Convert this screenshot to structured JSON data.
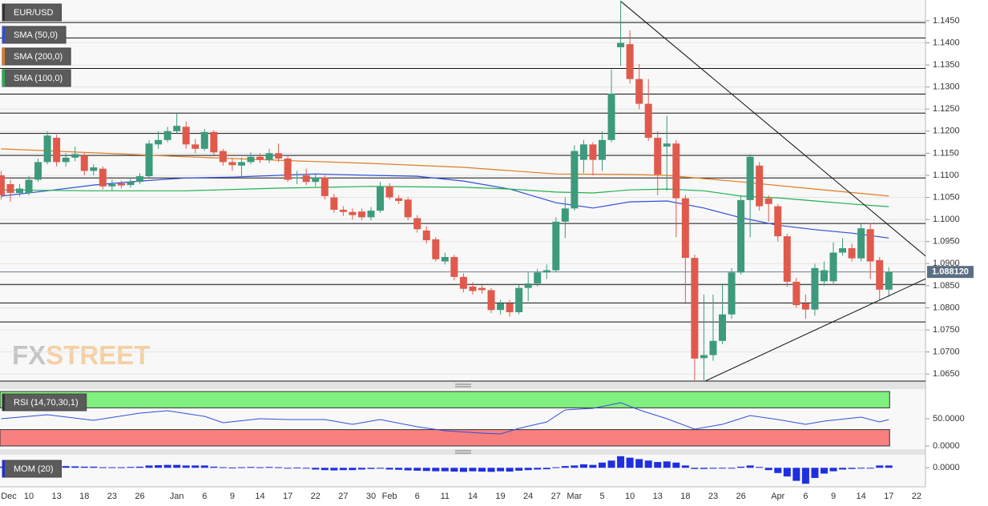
{
  "chart_data": [
    {
      "type": "candlestick",
      "title": "EUR/USD",
      "categories": [
        "Dec",
        null,
        null,
        "10",
        null,
        null,
        "13",
        null,
        null,
        "18",
        null,
        null,
        "23",
        null,
        null,
        "26",
        null,
        null,
        null,
        "Jan",
        null,
        null,
        "6",
        null,
        null,
        "9",
        null,
        null,
        "14",
        null,
        null,
        "17",
        null,
        null,
        "22",
        null,
        null,
        "27",
        null,
        null,
        "30",
        null,
        "Feb",
        null,
        null,
        "6",
        null,
        null,
        "11",
        null,
        null,
        "14",
        null,
        null,
        "19",
        null,
        null,
        "24",
        null,
        null,
        "27",
        null,
        "Mar",
        null,
        null,
        "5",
        null,
        null,
        "10",
        null,
        null,
        "13",
        null,
        null,
        "18",
        null,
        null,
        "23",
        null,
        null,
        "26",
        null,
        null,
        null,
        "Apr",
        null,
        null,
        "6",
        null,
        null,
        "9",
        null,
        null,
        "14",
        null,
        null,
        "17",
        null,
        null,
        "22"
      ],
      "open": [
        1.11,
        1.108,
        1.106,
        1.106,
        1.109,
        1.113,
        1.1185,
        1.113,
        1.114,
        1.1145,
        1.111,
        1.1115,
        1.1075,
        1.1082,
        1.1078,
        1.1085,
        1.1098,
        1.117,
        1.118,
        1.12,
        1.121,
        1.117,
        1.116,
        1.1198,
        1.1155,
        1.113,
        1.1122,
        1.113,
        1.1142,
        1.1135,
        1.115,
        1.1138,
        1.1093,
        1.11,
        1.1085,
        1.1095,
        1.105,
        1.1022,
        1.1017,
        1.1018,
        1.1005,
        1.102,
        1.1075,
        1.1048,
        1.1045,
        1.1003,
        1.0975,
        1.0955,
        1.0905,
        1.0915,
        1.087,
        1.0848,
        1.0845,
        1.084,
        1.0795,
        1.081,
        1.079,
        1.0845,
        1.0855,
        1.088,
        1.0885,
        1.0995,
        1.1025,
        1.1135,
        1.117,
        1.1135,
        1.118,
        1.139,
        1.1397,
        1.1318,
        1.1262,
        1.1185,
        1.1165,
        1.1172,
        1.1048,
        1.0913,
        1.0686,
        1.0693,
        1.0725,
        1.0785,
        1.088,
        1.1044,
        1.1122,
        1.1048,
        1.103,
        1.0962,
        1.0859,
        1.081,
        1.0796,
        1.086,
        1.086,
        1.0925,
        1.0935,
        1.0912,
        1.0978,
        1.0908,
        1.0841,
        null,
        null,
        null
      ],
      "high": [
        1.111,
        1.109,
        1.108,
        1.1098,
        1.1138,
        1.12,
        1.1192,
        1.115,
        1.1165,
        1.115,
        1.1125,
        1.112,
        1.109,
        1.1088,
        1.1095,
        1.1105,
        1.118,
        1.12,
        1.121,
        1.124,
        1.1222,
        1.1182,
        1.1205,
        1.1202,
        1.116,
        1.1138,
        1.114,
        1.1152,
        1.115,
        1.116,
        1.1172,
        1.1145,
        1.111,
        1.1115,
        1.1102,
        1.11,
        1.1058,
        1.103,
        1.1025,
        1.1025,
        1.1028,
        1.1085,
        1.1082,
        1.1055,
        1.105,
        1.101,
        1.0985,
        1.096,
        1.0925,
        1.092,
        1.0878,
        1.0858,
        1.0852,
        1.0845,
        1.0818,
        1.0818,
        1.0852,
        1.088,
        1.0888,
        1.0898,
        1.1005,
        1.105,
        1.1168,
        1.118,
        1.1175,
        1.12,
        1.134,
        1.1496,
        1.1428,
        1.1352,
        1.1318,
        1.12,
        1.1235,
        1.118,
        1.1055,
        1.092,
        1.083,
        1.083,
        1.0855,
        1.089,
        1.1055,
        1.1148,
        1.113,
        1.1055,
        1.1035,
        1.0968,
        1.0868,
        1.083,
        1.09,
        1.0905,
        1.0948,
        1.0958,
        1.0945,
        1.099,
        1.0992,
        1.0915,
        1.0892,
        null,
        null,
        null
      ],
      "low": [
        1.1045,
        1.104,
        1.1052,
        1.1055,
        1.1085,
        1.1125,
        1.112,
        1.112,
        1.1132,
        1.11,
        1.11,
        1.1068,
        1.1066,
        1.107,
        1.1072,
        1.108,
        1.1095,
        1.116,
        1.1175,
        1.1195,
        1.116,
        1.115,
        1.1155,
        1.1145,
        1.1122,
        1.111,
        1.1098,
        1.1125,
        1.1128,
        1.1128,
        1.113,
        1.1085,
        1.108,
        1.1078,
        1.1075,
        1.1045,
        1.1015,
        1.1008,
        1.1,
        1.0998,
        1.0998,
        1.1015,
        1.1045,
        1.1035,
        1.0998,
        1.097,
        1.0945,
        1.0905,
        1.0898,
        1.0862,
        1.0835,
        1.083,
        1.0832,
        1.0788,
        1.0785,
        1.078,
        1.0785,
        1.0815,
        1.0848,
        1.0865,
        1.088,
        1.0958,
        1.102,
        1.1105,
        1.11,
        1.111,
        1.1175,
        1.1348,
        1.1308,
        1.125,
        1.1178,
        1.1055,
        1.1065,
        1.096,
        1.0808,
        1.0636,
        1.0636,
        1.068,
        1.0718,
        1.0775,
        1.0875,
        1.096,
        1.102,
        1.0995,
        1.095,
        1.0848,
        1.08,
        1.0775,
        1.0782,
        1.085,
        1.0855,
        1.0918,
        1.0905,
        1.0905,
        1.0865,
        1.0818,
        1.0825,
        null,
        null,
        null
      ],
      "close": [
        1.1055,
        1.106,
        1.107,
        1.109,
        1.113,
        1.119,
        1.113,
        1.114,
        1.1148,
        1.111,
        1.1118,
        1.1075,
        1.108,
        1.1077,
        1.1085,
        1.1098,
        1.1172,
        1.118,
        1.12,
        1.1212,
        1.117,
        1.116,
        1.1198,
        1.1152,
        1.113,
        1.1123,
        1.113,
        1.1142,
        1.1135,
        1.115,
        1.1138,
        1.109,
        1.1095,
        1.1085,
        1.1095,
        1.1053,
        1.1022,
        1.1017,
        1.101,
        1.1005,
        1.102,
        1.1075,
        1.105,
        1.1042,
        1.1005,
        1.0978,
        1.0953,
        1.091,
        1.0915,
        1.087,
        1.0843,
        1.0838,
        1.084,
        1.0795,
        1.081,
        1.079,
        1.0845,
        1.0855,
        1.088,
        1.0885,
        1.0995,
        1.1025,
        1.1155,
        1.117,
        1.1135,
        1.118,
        1.1285,
        1.14,
        1.1318,
        1.1262,
        1.1185,
        1.1102,
        1.1172,
        1.1048,
        1.0913,
        1.0685,
        1.0693,
        1.0725,
        1.0785,
        1.088,
        1.1044,
        1.1142,
        1.103,
        1.1035,
        1.0962,
        1.0859,
        1.0806,
        1.0796,
        1.089,
        1.0885,
        1.0925,
        1.0935,
        1.0912,
        1.098,
        1.0905,
        1.0841,
        1.0881,
        null,
        null,
        null
      ],
      "up_color": "#3d9a7c",
      "down_color": "#e05a4c",
      "series": [
        {
          "name": "SMA (50,0)",
          "color": "#2f4fd8",
          "x": [
            0,
            5,
            10,
            15,
            20,
            25,
            30,
            34,
            40,
            45,
            50,
            55,
            60,
            64,
            68,
            72,
            76,
            80,
            84,
            88,
            92,
            96
          ],
          "values": [
            1.1053,
            1.1065,
            1.1078,
            1.1087,
            1.1094,
            1.1096,
            1.11,
            1.1103,
            1.11,
            1.1098,
            1.1087,
            1.1069,
            1.1038,
            1.1026,
            1.104,
            1.1042,
            1.1026,
            1.1004,
            1.0987,
            1.0977,
            1.0969,
            1.0958
          ]
        },
        {
          "name": "SMA (200,0)",
          "color": "#e07b20",
          "x": [
            0,
            10,
            20,
            30,
            40,
            50,
            60,
            68,
            72,
            80,
            88,
            96
          ],
          "values": [
            1.116,
            1.1151,
            1.1142,
            1.1134,
            1.1127,
            1.1118,
            1.1103,
            1.1102,
            1.11,
            1.1085,
            1.1069,
            1.1053
          ]
        },
        {
          "name": "SMA (100,0)",
          "color": "#22b14c",
          "x": [
            0,
            10,
            20,
            30,
            40,
            50,
            55,
            60,
            64,
            68,
            72,
            76,
            80,
            84,
            88,
            92,
            96
          ],
          "values": [
            1.1067,
            1.1065,
            1.1065,
            1.1071,
            1.1075,
            1.1073,
            1.1069,
            1.1062,
            1.106,
            1.1067,
            1.1069,
            1.1065,
            1.1053,
            1.1049,
            1.1042,
            1.1035,
            1.1029
          ]
        }
      ],
      "levels": [
        1.1446,
        1.1411,
        1.1342,
        1.1284,
        1.1241,
        1.1195,
        1.1145,
        1.1094,
        1.0991,
        1.0853,
        1.0811,
        1.0768,
        1.0634
      ],
      "trendlines": [
        [
          [
            67.04,
            1.14935
          ],
          [
            100,
            1.09167
          ]
        ],
        [
          [
            76.1,
            1.06337
          ],
          [
            100,
            1.08659
          ]
        ]
      ],
      "last": {
        "value": 1.08812,
        "label": "1.088120"
      },
      "watermark": [
        "FX",
        "STREET"
      ],
      "ylim": [
        1.0634,
        1.1497
      ],
      "yticks": [
        {
          "value": 1.065,
          "label": "1.0650"
        },
        {
          "value": 1.07,
          "label": "1.0700"
        },
        {
          "value": 1.075,
          "label": "1.0750"
        },
        {
          "value": 1.08,
          "label": "1.0800"
        },
        {
          "value": 1.085,
          "label": "1.0850"
        },
        {
          "value": 1.09,
          "label": "1.0900"
        },
        {
          "value": 1.095,
          "label": "1.0950"
        },
        {
          "value": 1.1,
          "label": "1.1000"
        },
        {
          "value": 1.105,
          "label": "1.1050"
        },
        {
          "value": 1.11,
          "label": "1.1100"
        },
        {
          "value": 1.115,
          "label": "1.1150"
        },
        {
          "value": 1.12,
          "label": "1.1200"
        },
        {
          "value": 1.125,
          "label": "1.1250"
        },
        {
          "value": 1.13,
          "label": "1.1300"
        },
        {
          "value": 1.135,
          "label": "1.1350"
        },
        {
          "value": 1.14,
          "label": "1.1400"
        },
        {
          "value": 1.145,
          "label": "1.1450"
        }
      ],
      "grid": true
    },
    {
      "type": "line",
      "title": "RSI (14,70,30,1)",
      "color": "#2f4fd8",
      "x": [
        0,
        5,
        10,
        15,
        18,
        22,
        24,
        28,
        31,
        35,
        38,
        41,
        45,
        48,
        52,
        54,
        56,
        59,
        61,
        64,
        67,
        69,
        72,
        75,
        78,
        81,
        84,
        87,
        89,
        93,
        95,
        96
      ],
      "values": [
        50,
        57.4,
        47.1,
        60.3,
        64.7,
        54.4,
        42.6,
        50,
        48.5,
        48.5,
        39.7,
        48.5,
        35.3,
        27.9,
        23.5,
        22.1,
        32.4,
        44.1,
        66.2,
        69.1,
        79.4,
        66.2,
        50,
        30.9,
        39.7,
        55.9,
        48.5,
        39.7,
        45.6,
        52.9,
        44.1,
        48.5
      ],
      "upper": 70,
      "lower": 30,
      "upper_color": "#80f080",
      "lower_color": "#f88080",
      "ylim": [
        0,
        100
      ],
      "yticks": [
        {
          "value": 0,
          "label": "0.0000"
        },
        {
          "value": 50,
          "label": "50.0000"
        }
      ]
    },
    {
      "type": "bar",
      "title": "MOM (20)",
      "color": "#1f2fe0",
      "values": [
        0.004,
        0.003,
        0.004,
        0.005,
        0.006,
        0.008,
        0.006,
        0.006,
        0.005,
        0.004,
        0.004,
        0.002,
        0.002,
        0.002,
        0.003,
        0.004,
        0.008,
        0.009,
        0.01,
        0.01,
        0.008,
        0.008,
        0.008,
        0.004,
        0.002,
        0.001,
        0.002,
        0.003,
        0.002,
        0.003,
        0.002,
        0.0,
        0.001,
        -0.001,
        -0.006,
        -0.008,
        -0.009,
        -0.008,
        -0.008,
        -0.006,
        -0.004,
        -0.003,
        -0.006,
        -0.007,
        -0.009,
        -0.01,
        -0.011,
        -0.012,
        -0.012,
        -0.013,
        -0.014,
        -0.012,
        -0.013,
        -0.014,
        -0.012,
        -0.013,
        -0.01,
        -0.008,
        -0.006,
        -0.005,
        0.002,
        0.006,
        0.008,
        0.012,
        0.01,
        0.018,
        0.025,
        0.04,
        0.035,
        0.03,
        0.025,
        0.02,
        0.022,
        0.018,
        0.008,
        -0.004,
        -0.004,
        -0.003,
        -0.002,
        0.0,
        0.004,
        0.008,
        0.003,
        -0.008,
        -0.018,
        -0.03,
        -0.045,
        -0.055,
        -0.035,
        -0.02,
        -0.012,
        -0.006,
        -0.004,
        -0.002,
        -0.001,
        0.008,
        0.008
      ],
      "ylim": [
        -0.06,
        0.045
      ],
      "yticks": [
        {
          "value": 0,
          "label": "0.0000"
        }
      ]
    }
  ]
}
